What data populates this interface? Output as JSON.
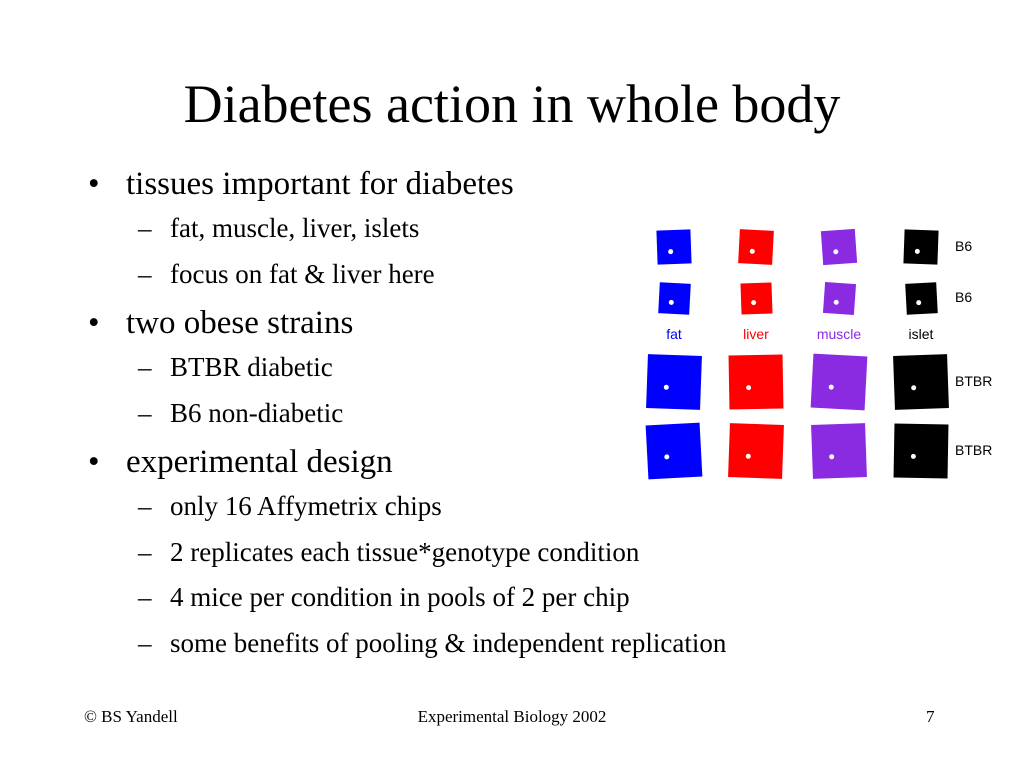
{
  "slide": {
    "title": "Diabetes action in whole body",
    "bullet_symbol": "•",
    "dash_symbol": "–",
    "bullets": [
      {
        "text": "tissues important for diabetes",
        "sub": [
          "fat, muscle, liver, islets",
          "focus on fat & liver here"
        ]
      },
      {
        "text": "two obese strains",
        "sub": [
          "BTBR diabetic",
          "B6 non-diabetic"
        ]
      },
      {
        "text": "experimental design",
        "sub": [
          "only 16 Affymetrix chips",
          "2 replicates each tissue*genotype condition",
          "4 mice per condition in pools of 2 per chip",
          "some benefits of pooling & independent replication"
        ]
      }
    ]
  },
  "diagram": {
    "tissues": [
      {
        "label": "fat",
        "color": "#0000ff"
      },
      {
        "label": "liver",
        "color": "#ff0000"
      },
      {
        "label": "muscle",
        "color": "#8a2be2"
      },
      {
        "label": "islet",
        "color": "#000000"
      }
    ],
    "row_labels": [
      "B6",
      "B6",
      "BTBR",
      "BTBR"
    ]
  },
  "footer": {
    "left": "© BS Yandell",
    "center": "Experimental Biology 2002",
    "right": "7"
  }
}
